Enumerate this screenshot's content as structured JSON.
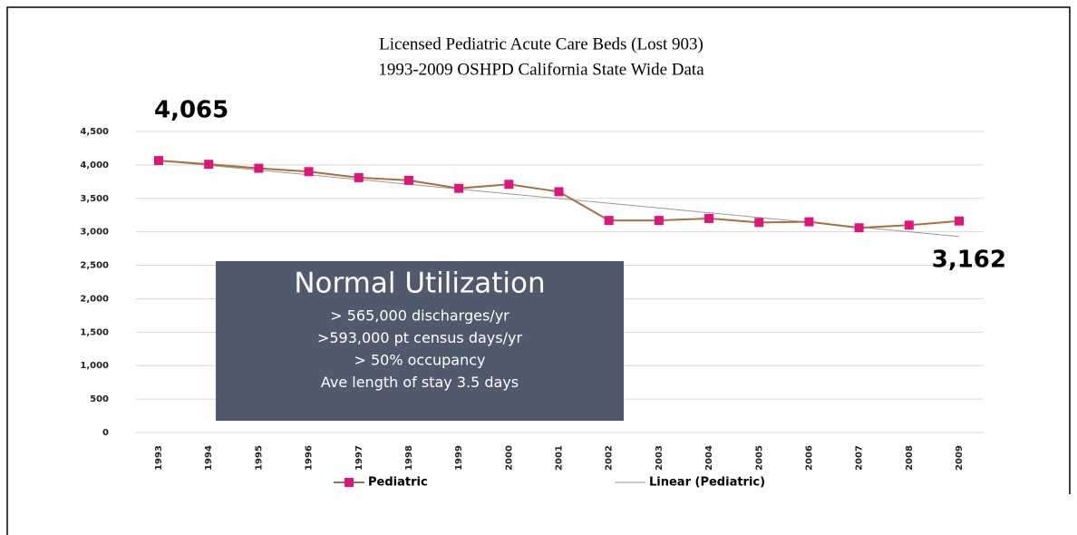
{
  "chart_data": {
    "type": "line",
    "title": "Licensed Pediatric Acute Care Beds (Lost 903)",
    "subtitle": "1993-2009 OSHPD California State Wide Data",
    "categories": [
      "1993",
      "1994",
      "1995",
      "1996",
      "1997",
      "1998",
      "1999",
      "2000",
      "2001",
      "2002",
      "2003",
      "2004",
      "2005",
      "2006",
      "2007",
      "2008",
      "2009"
    ],
    "series": [
      {
        "name": "Pediatric",
        "color": "#a8703c",
        "marker_color": "#e0157c",
        "values": [
          4065,
          4010,
          3950,
          3900,
          3810,
          3770,
          3650,
          3710,
          3600,
          3170,
          3170,
          3200,
          3140,
          3150,
          3060,
          3100,
          3162
        ]
      },
      {
        "name": "Linear (Pediatric)",
        "color": "#9a9a9a",
        "values": [
          4065,
          3994,
          3923,
          3852,
          3781,
          3710,
          3639,
          3568,
          3497,
          3427,
          3356,
          3285,
          3214,
          3143,
          3072,
          3001,
          2930
        ]
      }
    ],
    "ylim": [
      0,
      4500
    ],
    "yticks": [
      0,
      500,
      {
        "value": 1000,
        "label": "1,000"
      },
      {
        "value": 1500,
        "label": "1,500"
      },
      {
        "value": 2000,
        "label": "2,000"
      },
      {
        "value": 2500,
        "label": "2,500"
      },
      {
        "value": 3000,
        "label": "3,000"
      },
      {
        "value": 3500,
        "label": "3,500"
      },
      {
        "value": 4000,
        "label": "4,000"
      },
      {
        "value": 4500,
        "label": "4,500"
      }
    ],
    "grid": true,
    "annotations": [
      "4,065",
      "3,162"
    ],
    "box": {
      "heading": "Normal Utilization",
      "lines": [
        "> 565,000 discharges/yr",
        ">593,000 pt census days/yr",
        "> 50% occupancy",
        "Ave length of stay 3.5 days"
      ]
    }
  }
}
